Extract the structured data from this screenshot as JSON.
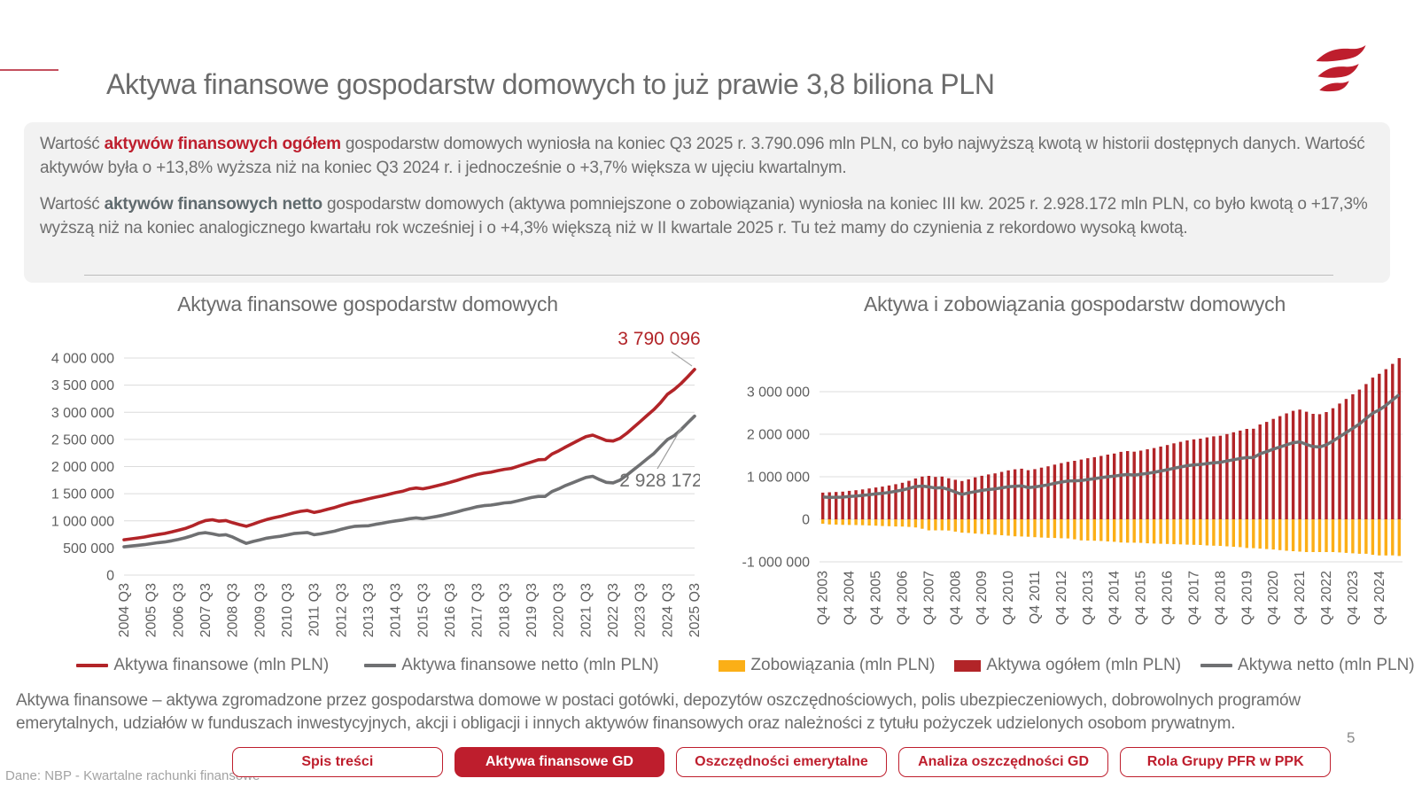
{
  "header": {
    "title": "Aktywa finansowe gospodarstw domowych to już prawie 3,8 biliona PLN"
  },
  "summary": {
    "p1_prefix": "Wartość ",
    "p1_highlight": "aktywów finansowych ogółem",
    "p1_rest": " gospodarstw domowych wyniosła na koniec Q3 2025 r. 3.790.096 mln PLN, co było najwyższą kwotą w historii dostępnych danych. Wartość aktywów była o +13,8% wyższa niż na koniec Q3 2024 r. i jednocześnie o +3,7% większa w ujęciu kwartalnym.",
    "p2_prefix": "Wartość ",
    "p2_highlight": "aktywów finansowych netto",
    "p2_rest": " gospodarstw domowych (aktywa pomniejszone o zobowiązania) wyniosła na koniec III kw. 2025 r. 2.928.172 mln PLN, co było kwotą o +17,3% wyższą niż na koniec analogicznego kwartału rok wcześniej i o +4,3% większą niż w II kwartale 2025 r. Tu też mamy do czynienia z rekordowo wysoką kwotą."
  },
  "chart_data": [
    {
      "type": "line",
      "title": "Aktywa finansowe gospodarstw domowych",
      "x_unit": "quarter",
      "x_range": [
        "2004 Q3",
        "2025 Q3"
      ],
      "x_tick_labels": [
        "2004 Q3",
        "2005 Q3",
        "2006 Q3",
        "2007 Q3",
        "2008 Q3",
        "2009 Q3",
        "2010 Q3",
        "2011 Q3",
        "2012 Q3",
        "2013 Q3",
        "2014 Q3",
        "2015 Q3",
        "2016 Q3",
        "2017 Q3",
        "2018 Q3",
        "2019 Q3",
        "2020 Q3",
        "2021 Q3",
        "2022 Q3",
        "2023 Q3",
        "2024 Q3",
        "2025 Q3"
      ],
      "ylim": [
        0,
        4000000
      ],
      "y_ticks": [
        0,
        500000,
        1000000,
        1500000,
        2000000,
        2500000,
        3000000,
        3500000,
        4000000
      ],
      "y_tick_labels": [
        "0",
        "500 000",
        "1 000 000",
        "1 500 000",
        "2 000 000",
        "2 500 000",
        "3 000 000",
        "3 500 000",
        "4 000 000"
      ],
      "grid": true,
      "legend_position": "bottom",
      "series": [
        {
          "name": "Aktywa finansowe (mln PLN)",
          "color": "#b22428",
          "values": [
            651000,
            668000,
            684000,
            702000,
            726000,
            748000,
            768000,
            795000,
            826000,
            858000,
            905000,
            960000,
            1005000,
            1020000,
            995000,
            1005000,
            965000,
            930000,
            900000,
            940000,
            985000,
            1023000,
            1055000,
            1080000,
            1115000,
            1150000,
            1175000,
            1190000,
            1155000,
            1180000,
            1215000,
            1245000,
            1285000,
            1320000,
            1350000,
            1375000,
            1405000,
            1435000,
            1460000,
            1490000,
            1520000,
            1545000,
            1585000,
            1605000,
            1590000,
            1615000,
            1645000,
            1675000,
            1710000,
            1745000,
            1785000,
            1820000,
            1855000,
            1880000,
            1895000,
            1925000,
            1950000,
            1965000,
            2005000,
            2045000,
            2085000,
            2125000,
            2130000,
            2230000,
            2290000,
            2360000,
            2425000,
            2490000,
            2550000,
            2580000,
            2530000,
            2480000,
            2470000,
            2520000,
            2610000,
            2720000,
            2830000,
            2940000,
            3050000,
            3180000,
            3331000,
            3420000,
            3530000,
            3655000,
            3790096
          ]
        },
        {
          "name": "Aktywa finansowe netto (mln PLN)",
          "color": "#6f7072",
          "values": [
            520000,
            535000,
            548000,
            562000,
            580000,
            598000,
            610000,
            632000,
            658000,
            688000,
            725000,
            768000,
            782000,
            760000,
            735000,
            745000,
            700000,
            640000,
            585000,
            620000,
            650000,
            680000,
            700000,
            715000,
            740000,
            765000,
            775000,
            785000,
            745000,
            760000,
            785000,
            810000,
            845000,
            875000,
            900000,
            905000,
            910000,
            935000,
            955000,
            980000,
            1000000,
            1015000,
            1040000,
            1055000,
            1040000,
            1060000,
            1080000,
            1105000,
            1135000,
            1165000,
            1200000,
            1230000,
            1260000,
            1280000,
            1290000,
            1310000,
            1330000,
            1340000,
            1370000,
            1400000,
            1430000,
            1450000,
            1450000,
            1540000,
            1590000,
            1650000,
            1700000,
            1750000,
            1800000,
            1820000,
            1760000,
            1710000,
            1700000,
            1750000,
            1840000,
            1940000,
            2040000,
            2140000,
            2240000,
            2370000,
            2496000,
            2570000,
            2680000,
            2807000,
            2928172
          ]
        }
      ],
      "annotations": [
        {
          "text": "3 790 096",
          "series": 0,
          "point": "last"
        },
        {
          "text": "2 928 172",
          "series": 1,
          "point": "last"
        }
      ]
    },
    {
      "type": "bar",
      "title": "Aktywa i zobowiązania gospodarstw domowych",
      "x_unit": "quarter",
      "x_range": [
        "Q4 2003",
        "Q3 2025"
      ],
      "x_tick_labels": [
        "Q4 2003",
        "Q4 2004",
        "Q4 2005",
        "Q4 2006",
        "Q4 2007",
        "Q4 2008",
        "Q4 2009",
        "Q4 2010",
        "Q4 2011",
        "Q4 2012",
        "Q4 2013",
        "Q4 2014",
        "Q4 2015",
        "Q4 2016",
        "Q4 2017",
        "Q4 2018",
        "Q4 2019",
        "Q4 2020",
        "Q4 2021",
        "Q4 2022",
        "Q4 2023",
        "Q4 2024"
      ],
      "ylim": [
        -1000000,
        3800000
      ],
      "y_ticks": [
        -1000000,
        0,
        1000000,
        2000000,
        3000000
      ],
      "y_tick_labels": [
        "-1 000 000",
        "0",
        "1 000 000",
        "2 000 000",
        "3 000 000"
      ],
      "grid": true,
      "legend_position": "bottom",
      "series": [
        {
          "name": "Zobowiązania (mln PLN)",
          "type": "bar",
          "color": "#fbaf17",
          "values": [
            -105000,
            -120000,
            -124000,
            -131000,
            -133000,
            -136000,
            -140000,
            -146000,
            -150000,
            -158000,
            -163000,
            -168000,
            -170000,
            -180000,
            -192000,
            -223000,
            -260000,
            -260000,
            -260000,
            -265000,
            -290000,
            -315000,
            -320000,
            -335000,
            -343000,
            -355000,
            -365000,
            -375000,
            -385000,
            -400000,
            -405000,
            -410000,
            -420000,
            -430000,
            -435000,
            -440000,
            -445000,
            -450000,
            -470000,
            -495000,
            -500000,
            -505000,
            -510000,
            -520000,
            -530000,
            -545000,
            -550000,
            -550000,
            -555000,
            -565000,
            -570000,
            -575000,
            -580000,
            -585000,
            -590000,
            -595000,
            -600000,
            -605000,
            -615000,
            -620000,
            -625000,
            -635000,
            -645000,
            -655000,
            -675000,
            -680000,
            -690000,
            -700000,
            -710000,
            -725000,
            -740000,
            -750000,
            -760000,
            -770000,
            -770000,
            -770000,
            -770000,
            -770000,
            -780000,
            -790000,
            -800000,
            -810000,
            -810000,
            -835000,
            -850000,
            -850000,
            -848000,
            -861924
          ]
        },
        {
          "name": "Aktywa ogółem (mln PLN)",
          "type": "bar",
          "color": "#b22428",
          "values": [
            628000,
            635000,
            642000,
            651000,
            668000,
            684000,
            702000,
            726000,
            748000,
            768000,
            795000,
            826000,
            858000,
            905000,
            960000,
            1005000,
            1020000,
            995000,
            1005000,
            965000,
            930000,
            900000,
            940000,
            985000,
            1023000,
            1055000,
            1080000,
            1115000,
            1150000,
            1175000,
            1190000,
            1155000,
            1180000,
            1215000,
            1245000,
            1285000,
            1320000,
            1350000,
            1375000,
            1405000,
            1435000,
            1460000,
            1490000,
            1520000,
            1545000,
            1585000,
            1605000,
            1590000,
            1615000,
            1645000,
            1675000,
            1710000,
            1745000,
            1785000,
            1820000,
            1855000,
            1880000,
            1895000,
            1925000,
            1950000,
            1965000,
            2005000,
            2045000,
            2085000,
            2125000,
            2130000,
            2230000,
            2290000,
            2360000,
            2425000,
            2490000,
            2550000,
            2580000,
            2530000,
            2480000,
            2470000,
            2520000,
            2610000,
            2720000,
            2830000,
            2940000,
            3050000,
            3180000,
            3331000,
            3420000,
            3530000,
            3655000,
            3790096
          ]
        },
        {
          "name": "Aktywa netto (mln PLN)",
          "type": "line",
          "color": "#6f7072",
          "values": [
            523000,
            515000,
            518000,
            520000,
            535000,
            548000,
            562000,
            580000,
            598000,
            610000,
            632000,
            658000,
            688000,
            725000,
            768000,
            782000,
            760000,
            735000,
            745000,
            700000,
            640000,
            585000,
            620000,
            650000,
            680000,
            700000,
            715000,
            740000,
            765000,
            775000,
            785000,
            745000,
            760000,
            785000,
            810000,
            845000,
            875000,
            900000,
            905000,
            910000,
            935000,
            955000,
            980000,
            1000000,
            1015000,
            1040000,
            1055000,
            1040000,
            1060000,
            1080000,
            1105000,
            1135000,
            1165000,
            1200000,
            1230000,
            1260000,
            1280000,
            1290000,
            1310000,
            1330000,
            1340000,
            1370000,
            1400000,
            1430000,
            1450000,
            1450000,
            1540000,
            1590000,
            1650000,
            1700000,
            1750000,
            1800000,
            1820000,
            1760000,
            1710000,
            1700000,
            1750000,
            1840000,
            1940000,
            2040000,
            2140000,
            2240000,
            2370000,
            2496000,
            2570000,
            2680000,
            2807000,
            2928172
          ]
        }
      ]
    }
  ],
  "footnote": "Aktywa finansowe – aktywa zgromadzone przez gospodarstwa domowe w postaci gotówki, depozytów oszczędnościowych, polis ubezpieczeniowych, dobrowolnych programów emerytalnych, udziałów w funduszach inwestycyjnych, akcji i obligacji i innych aktywów finansowych oraz należności z tytułu pożyczek udzielonych osobom prywatnym.",
  "footer": {
    "source": "Dane: NBP - Kwartalne rachunki finansowe",
    "page": "5",
    "buttons": [
      {
        "label": "Spis treści",
        "active": false
      },
      {
        "label": "Aktywa finansowe GD",
        "active": true
      },
      {
        "label": "Oszczędności emerytalne",
        "active": false
      },
      {
        "label": "Analiza oszczędności GD",
        "active": false
      },
      {
        "label": "Rola Grupy PFR w PPK",
        "active": false
      }
    ]
  },
  "colors": {
    "accent_red": "#be1e2d",
    "chart_red": "#b22428",
    "chart_orange": "#fbaf17",
    "chart_gray": "#6f7072",
    "text_gray": "#6e6e6e",
    "grid_gray": "#dcdcdc"
  },
  "icons": {
    "logo": "pfr-flag-logo"
  }
}
